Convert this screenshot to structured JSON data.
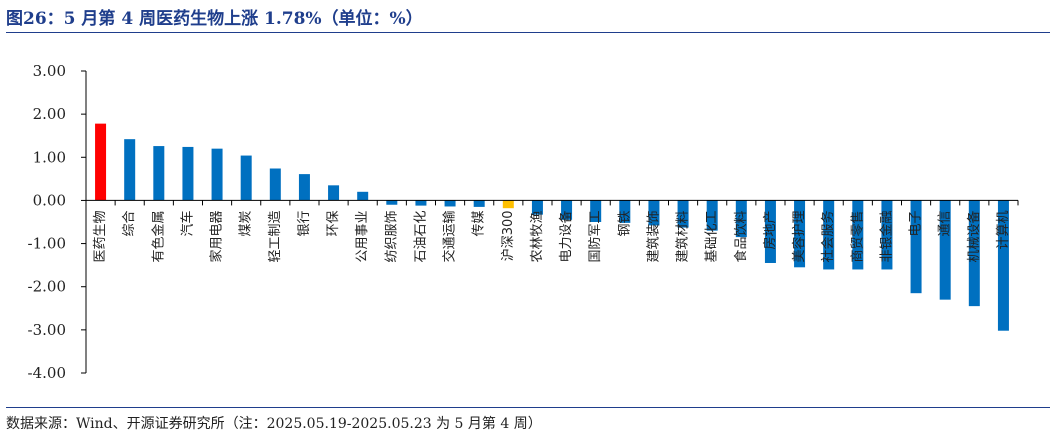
{
  "header": {
    "title": "图26：5 月第 4 周医药生物上涨 1.78%（单位：%）"
  },
  "footer": {
    "source": "数据来源：Wind、开源证券研究所（注：2025.05.19-2025.05.23 为 5 月第 4 周）"
  },
  "colors": {
    "highlight": "#ff0000",
    "benchmark": "#ffc000",
    "default": "#0070c0",
    "title": "#1f3e8c"
  },
  "chart_data": {
    "type": "bar",
    "title": "5 月第 4 周医药生物上涨 1.78%",
    "unit": "%",
    "ylim": [
      -4,
      3
    ],
    "yticks": [
      "3.00",
      "2.00",
      "1.00",
      "0.00",
      "-1.00",
      "-2.00",
      "-3.00",
      "-4.00"
    ],
    "ytick_values": [
      3,
      2,
      1,
      0,
      -1,
      -2,
      -3,
      -4
    ],
    "categories": [
      "医药生物",
      "综合",
      "有色金属",
      "汽车",
      "家用电器",
      "煤炭",
      "轻工制造",
      "银行",
      "环保",
      "公用事业",
      "纺织服饰",
      "石油石化",
      "交通运输",
      "传媒",
      "沪深300",
      "农林牧渔",
      "电力设备",
      "国防军工",
      "钢铁",
      "建筑装饰",
      "建筑材料",
      "基础化工",
      "食品饮料",
      "房地产",
      "美容护理",
      "社会服务",
      "商贸零售",
      "非银金融",
      "电子",
      "通信",
      "机械设备",
      "计算机"
    ],
    "values": [
      1.78,
      1.42,
      1.26,
      1.24,
      1.2,
      1.04,
      0.74,
      0.61,
      0.35,
      0.2,
      -0.1,
      -0.12,
      -0.14,
      -0.15,
      -0.18,
      -0.33,
      -0.45,
      -0.5,
      -0.52,
      -0.58,
      -0.63,
      -0.7,
      -0.85,
      -1.45,
      -1.55,
      -1.6,
      -1.6,
      -1.6,
      -2.15,
      -2.3,
      -2.45,
      -3.02
    ],
    "highlight_index": 0,
    "benchmark_index": 14,
    "grid": false,
    "legend": "none"
  }
}
